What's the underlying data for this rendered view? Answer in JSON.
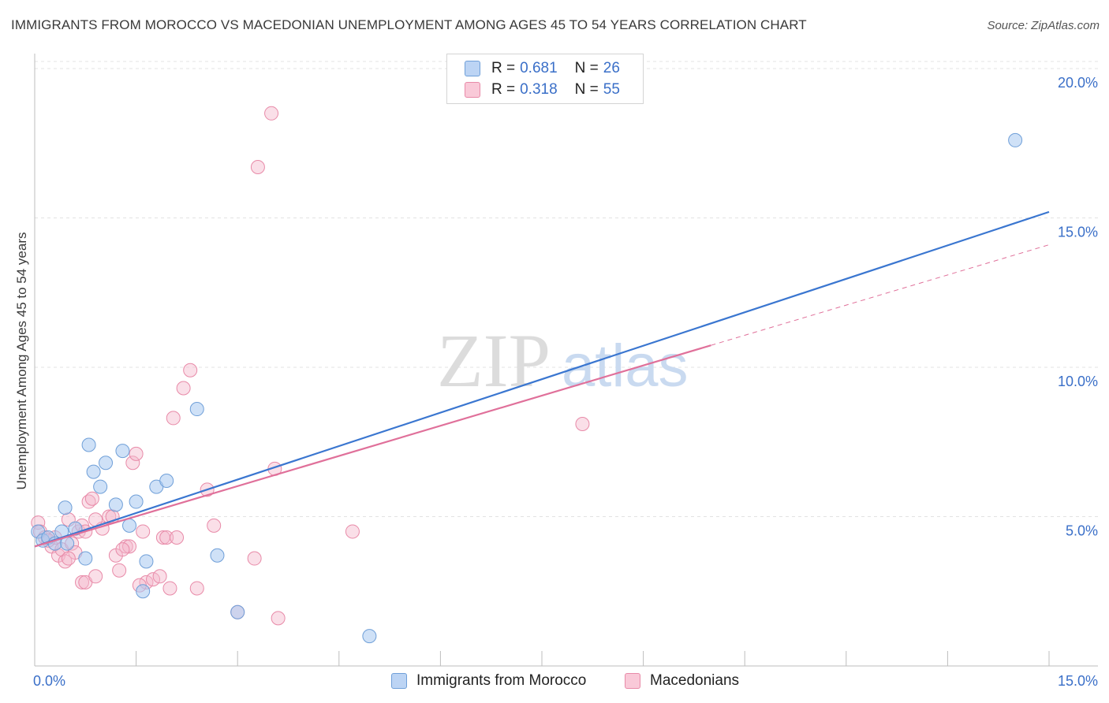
{
  "header": {
    "title": "IMMIGRANTS FROM MOROCCO VS MACEDONIAN UNEMPLOYMENT AMONG AGES 45 TO 54 YEARS CORRELATION CHART",
    "source": "Source: ZipAtlas.com"
  },
  "legend": {
    "items": [
      {
        "r_label": "R = ",
        "r_value": "0.681",
        "n_label": "N = ",
        "n_value": "26"
      },
      {
        "r_label": "R = ",
        "r_value": "0.318",
        "n_label": "N = ",
        "n_value": "55"
      }
    ]
  },
  "watermark": {
    "zip": "ZIP",
    "atlas": "atlas"
  },
  "colors": {
    "blue_fill": "#a8c8f0",
    "blue_stroke": "#6f9fd8",
    "blue_line": "#3a76d0",
    "pink_fill": "#f5b8cc",
    "pink_stroke": "#e88aa8",
    "pink_line": "#e0709a",
    "axis_text": "#3a6fc8",
    "grid": "#e3e3e3"
  },
  "chart_data": {
    "type": "scatter",
    "title": "IMMIGRANTS FROM MOROCCO VS MACEDONIAN UNEMPLOYMENT AMONG AGES 45 TO 54 YEARS CORRELATION CHART",
    "xlabel": "",
    "ylabel": "Unemployment Among Ages 45 to 54 years",
    "xlim": [
      0,
      15
    ],
    "ylim": [
      0,
      20.5
    ],
    "x_tick_labels": [
      "0.0%",
      "15.0%"
    ],
    "y_ticks": [
      5,
      10,
      15,
      20
    ],
    "y_tick_labels": [
      "5.0%",
      "10.0%",
      "15.0%",
      "20.0%"
    ],
    "legend_position": "top-center",
    "series": [
      {
        "name": "Immigrants from Morocco",
        "color": "#a8c8f0",
        "r": 0.681,
        "n": 26,
        "points": [
          [
            0.05,
            4.5
          ],
          [
            0.12,
            4.2
          ],
          [
            0.2,
            4.3
          ],
          [
            0.3,
            4.1
          ],
          [
            0.4,
            4.5
          ],
          [
            0.48,
            4.1
          ],
          [
            0.45,
            5.3
          ],
          [
            0.6,
            4.6
          ],
          [
            0.75,
            3.6
          ],
          [
            0.8,
            7.4
          ],
          [
            0.87,
            6.5
          ],
          [
            0.97,
            6.0
          ],
          [
            1.05,
            6.8
          ],
          [
            1.2,
            5.4
          ],
          [
            1.3,
            7.2
          ],
          [
            1.4,
            4.7
          ],
          [
            1.5,
            5.5
          ],
          [
            1.6,
            2.5
          ],
          [
            1.65,
            3.5
          ],
          [
            1.8,
            6.0
          ],
          [
            1.95,
            6.2
          ],
          [
            2.4,
            8.6
          ],
          [
            2.7,
            3.7
          ],
          [
            3.0,
            1.8
          ],
          [
            4.95,
            1.0
          ],
          [
            14.5,
            17.6
          ]
        ],
        "trend": {
          "x": [
            0,
            15
          ],
          "y": [
            4.0,
            15.2
          ],
          "style": "solid"
        }
      },
      {
        "name": "Macedonians",
        "color": "#f5b8cc",
        "r": 0.318,
        "n": 55,
        "points": [
          [
            0.05,
            4.8
          ],
          [
            0.08,
            4.5
          ],
          [
            0.15,
            4.3
          ],
          [
            0.25,
            4.0
          ],
          [
            0.3,
            4.3
          ],
          [
            0.35,
            3.7
          ],
          [
            0.4,
            3.9
          ],
          [
            0.45,
            3.5
          ],
          [
            0.5,
            4.9
          ],
          [
            0.55,
            4.1
          ],
          [
            0.6,
            3.8
          ],
          [
            0.65,
            4.5
          ],
          [
            0.7,
            4.7
          ],
          [
            0.75,
            4.5
          ],
          [
            0.8,
            5.5
          ],
          [
            0.85,
            5.6
          ],
          [
            0.7,
            2.8
          ],
          [
            0.75,
            2.8
          ],
          [
            0.9,
            3.0
          ],
          [
            1.0,
            4.6
          ],
          [
            1.1,
            5.0
          ],
          [
            1.15,
            5.0
          ],
          [
            1.2,
            3.7
          ],
          [
            1.25,
            3.2
          ],
          [
            1.35,
            4.0
          ],
          [
            1.4,
            4.0
          ],
          [
            1.45,
            6.8
          ],
          [
            1.5,
            7.1
          ],
          [
            1.6,
            4.5
          ],
          [
            1.65,
            2.8
          ],
          [
            1.75,
            2.9
          ],
          [
            1.85,
            3.0
          ],
          [
            1.9,
            4.3
          ],
          [
            1.95,
            4.3
          ],
          [
            2.1,
            4.3
          ],
          [
            2.2,
            9.3
          ],
          [
            2.05,
            8.3
          ],
          [
            2.3,
            9.9
          ],
          [
            2.4,
            2.6
          ],
          [
            2.55,
            5.9
          ],
          [
            2.65,
            4.7
          ],
          [
            3.0,
            1.8
          ],
          [
            3.25,
            3.6
          ],
          [
            3.3,
            16.7
          ],
          [
            3.5,
            18.5
          ],
          [
            3.55,
            6.6
          ],
          [
            3.6,
            1.6
          ],
          [
            4.7,
            4.5
          ],
          [
            8.1,
            8.1
          ],
          [
            0.2,
            4.2
          ],
          [
            0.5,
            3.6
          ],
          [
            0.9,
            4.9
          ],
          [
            1.3,
            3.9
          ],
          [
            1.55,
            2.7
          ],
          [
            2.0,
            2.6
          ]
        ],
        "trend": {
          "x": [
            0,
            15
          ],
          "y": [
            4.0,
            14.1
          ],
          "solid_until_x": 10.0,
          "style": "solid-then-dashed"
        }
      }
    ]
  },
  "bottom_legend": {
    "items": [
      {
        "label": "Immigrants from Morocco"
      },
      {
        "label": "Macedonians"
      }
    ]
  }
}
